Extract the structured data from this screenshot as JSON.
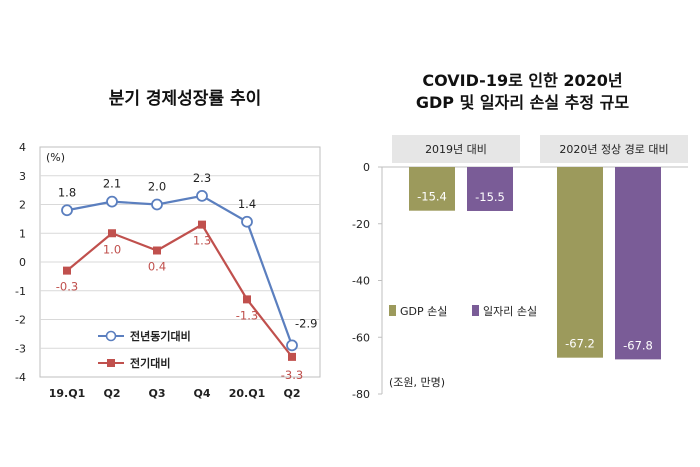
{
  "chart_data": [
    {
      "type": "line",
      "title": "분기 경제성장률 추이",
      "unit_label": "(%)",
      "categories": [
        "19.Q1",
        "Q2",
        "Q3",
        "Q4",
        "20.Q1",
        "Q2"
      ],
      "ylim": [
        -4,
        4
      ],
      "yticks": [
        4,
        3,
        2,
        1,
        0,
        -1,
        -2,
        -3,
        -4
      ],
      "grid": true,
      "legend_position": "bottom-left",
      "series": [
        {
          "name": "전년동기대비",
          "color": "#5b7fbf",
          "marker": "circle",
          "values": [
            1.8,
            2.1,
            2.0,
            2.3,
            1.4,
            -2.9
          ],
          "labels": [
            "1.8",
            "2.1",
            "2.0",
            "2.3",
            "1.4",
            "-2.9"
          ]
        },
        {
          "name": "전기대비",
          "color": "#c0504d",
          "marker": "square",
          "values": [
            -0.3,
            1.0,
            0.4,
            1.3,
            -1.3,
            -3.3
          ],
          "labels": [
            "-0.3",
            "1.0",
            "0.4",
            "1.3",
            "-1.3",
            "-3.3"
          ]
        }
      ]
    },
    {
      "type": "bar",
      "title_line1": "COVID-19로 인한 2020년",
      "title_line2": "GDP 및 일자리 손실 추정 규모",
      "unit_label": "(조원, 만명)",
      "group_headers": [
        "2019년 대비",
        "2020년 정상 경로 대비"
      ],
      "categories": [
        "2019년 대비",
        "2020년 정상 경로 대비"
      ],
      "ylim": [
        -80,
        0
      ],
      "yticks": [
        0,
        -20,
        -40,
        -60,
        -80
      ],
      "grid": false,
      "legend_position": "middle-left",
      "series": [
        {
          "name": "GDP 손실",
          "color": "#9c9a5c",
          "values": [
            -15.4,
            -67.2
          ],
          "labels": [
            "-15.4",
            "-67.2"
          ]
        },
        {
          "name": "일자리 손실",
          "color": "#7a5c97",
          "values": [
            -15.5,
            -67.8
          ],
          "labels": [
            "-15.5",
            "-67.8"
          ]
        }
      ]
    }
  ]
}
